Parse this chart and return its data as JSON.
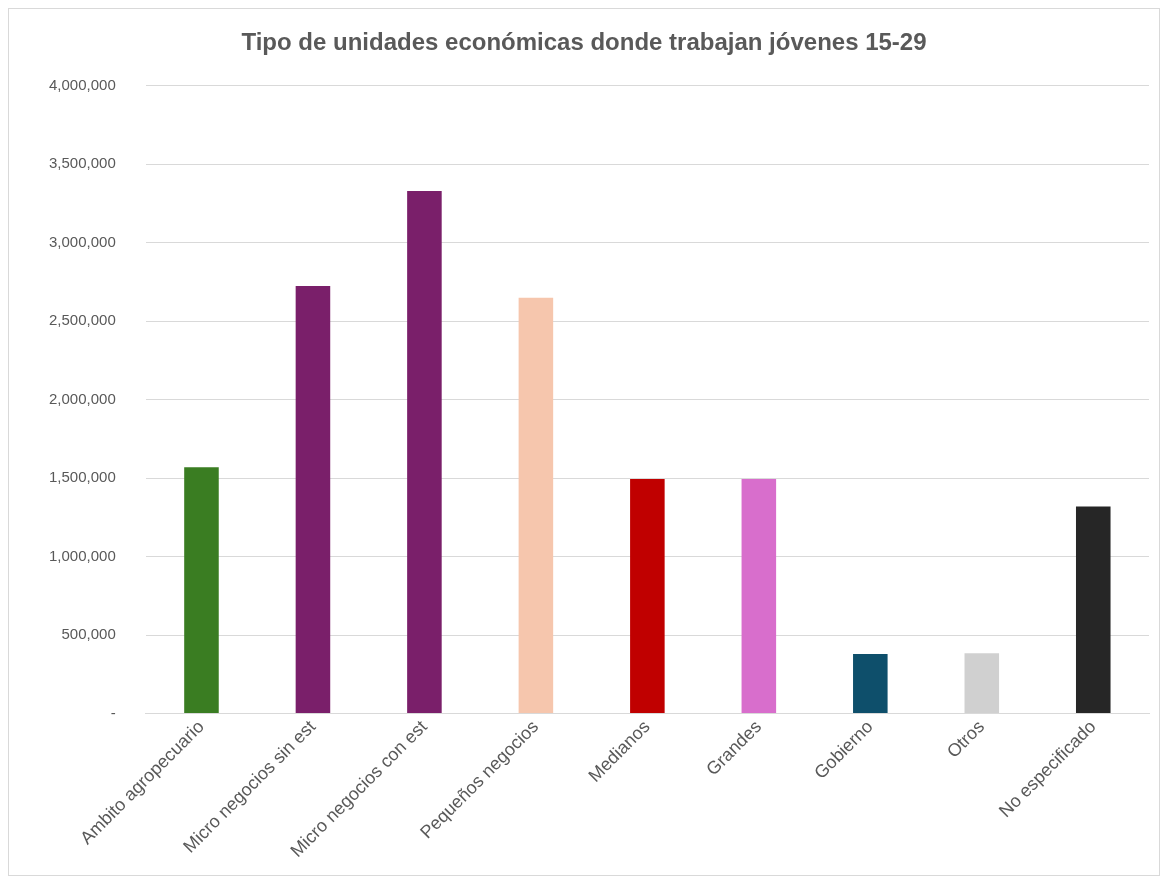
{
  "chart_data": {
    "type": "bar",
    "title": "Tipo de unidades económicas donde trabajan jóvenes 15-29",
    "categories": [
      "Ambito agropecuario",
      "Micro negocios sin est",
      "Micro negocios con est",
      "Pequeños negocios",
      "Medianos",
      "Grandes",
      "Gobierno",
      "Otros",
      "No especificado"
    ],
    "values": [
      1570000,
      2725000,
      3330000,
      2650000,
      1495000,
      1495000,
      380000,
      385000,
      1320000
    ],
    "colors": [
      "#3a7d22",
      "#7a1f6a",
      "#7a1f6a",
      "#f6c6ad",
      "#c00000",
      "#d86ecc",
      "#0e4f6b",
      "#d0d0d0",
      "#262626"
    ],
    "ylim": [
      0,
      4000000
    ],
    "yticks": [
      {
        "value": 0,
        "label": "-"
      },
      {
        "value": 500000,
        "label": "500,000"
      },
      {
        "value": 1000000,
        "label": "1,000,000"
      },
      {
        "value": 1500000,
        "label": "1,500,000"
      },
      {
        "value": 2000000,
        "label": "2,000,000"
      },
      {
        "value": 2500000,
        "label": "2,500,000"
      },
      {
        "value": 3000000,
        "label": "3,000,000"
      },
      {
        "value": 3500000,
        "label": "3,500,000"
      },
      {
        "value": 4000000,
        "label": "4,000,000"
      }
    ],
    "grid": "y",
    "legend": false
  }
}
